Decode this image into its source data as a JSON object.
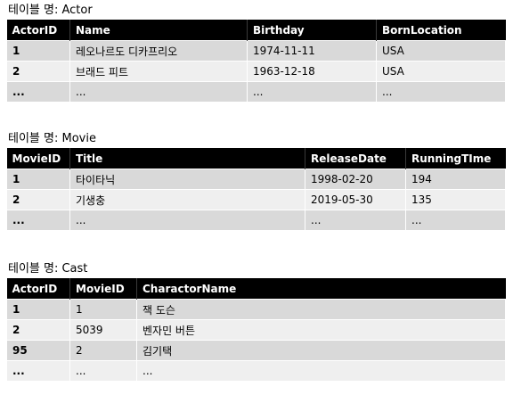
{
  "actor": {
    "caption": "테이블 명: Actor",
    "headers": [
      "ActorID",
      "Name",
      "Birthday",
      "BornLocation"
    ],
    "rows": [
      [
        "1",
        "레오나르도 디카프리오",
        "1974-11-11",
        "USA"
      ],
      [
        "2",
        "브래드 피트",
        "1963-12-18",
        "USA"
      ],
      [
        "...",
        "...",
        "...",
        "..."
      ]
    ]
  },
  "movie": {
    "caption": "테이블 명: Movie",
    "headers": [
      "MovieID",
      "Title",
      "ReleaseDate",
      "RunningTIme"
    ],
    "rows": [
      [
        "1",
        "타이타닉",
        "1998-02-20",
        "194"
      ],
      [
        "2",
        "기생충",
        "2019-05-30",
        "135"
      ],
      [
        "...",
        "...",
        "...",
        "..."
      ]
    ]
  },
  "cast": {
    "caption": "테이블 명: Cast",
    "headers": [
      "ActorID",
      "MovieID",
      "CharactorName"
    ],
    "rows": [
      [
        "1",
        "1",
        "잭 도슨"
      ],
      [
        "2",
        "5039",
        "벤자민 버튼"
      ],
      [
        "95",
        "2",
        "김기택"
      ],
      [
        "...",
        "...",
        "..."
      ]
    ]
  }
}
